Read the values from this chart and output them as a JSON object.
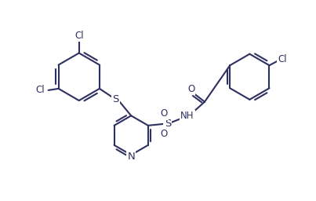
{
  "line_color": "#2d3060",
  "bg_color": "#ffffff",
  "line_width": 1.5,
  "font_size": 8.5,
  "fig_width": 4.03,
  "fig_height": 2.56,
  "dpi": 100,
  "xlim": [
    0,
    10
  ],
  "ylim": [
    0,
    6.3
  ]
}
